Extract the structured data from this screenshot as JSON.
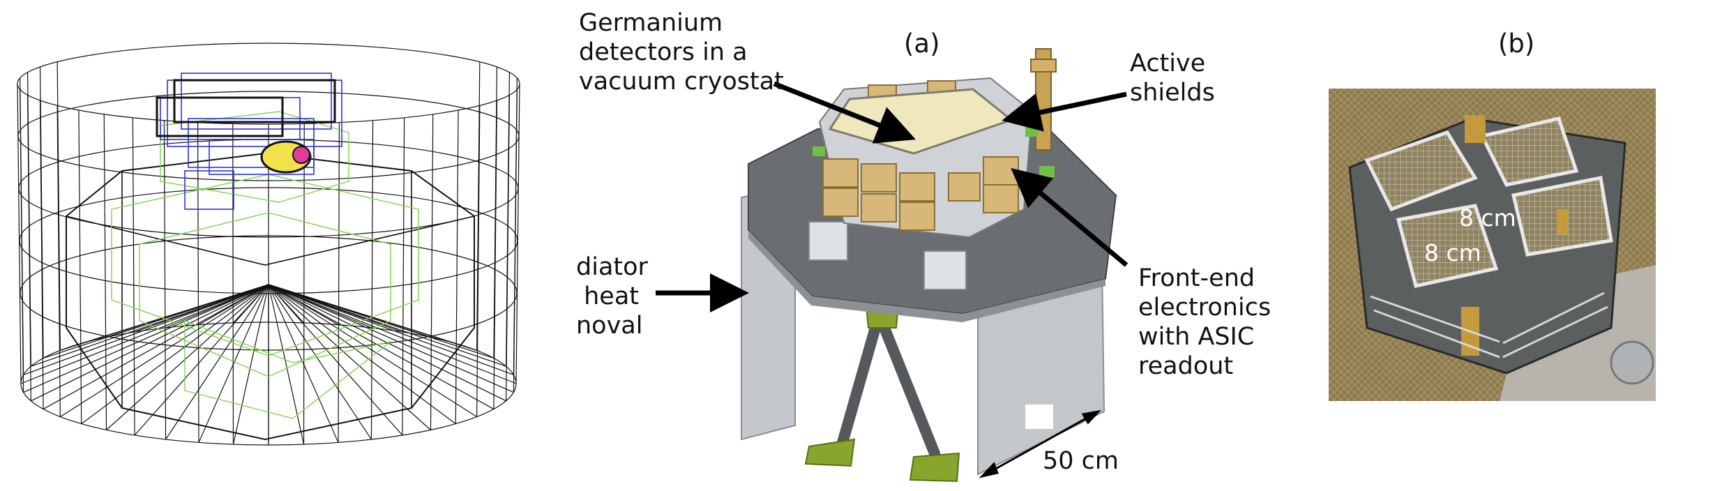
{
  "panels": {
    "a_label": "(a)",
    "b_label": "(b)"
  },
  "callouts": {
    "germanium": "Germanium\ndetectors in a\nvacuum cryostat",
    "active_shields": "Active\nshields",
    "radiator": "diator\n heat\nnoval",
    "front_end": "Front-end\nelectronics\nwith ASIC\nreadout",
    "dimension": "50 cm"
  },
  "photo": {
    "dim1": "8 cm",
    "dim2": "8 cm"
  },
  "colors": {
    "wireframe": "#111111",
    "green_outline": "#7cd64a",
    "blue_outline": "#2a34d6",
    "deck_gray": "#6f7378",
    "panel_gray": "#b9bcc0",
    "gold": "#d7b77a",
    "lime": "#7a9a1e",
    "photo_bg": "#8f7a4f"
  }
}
